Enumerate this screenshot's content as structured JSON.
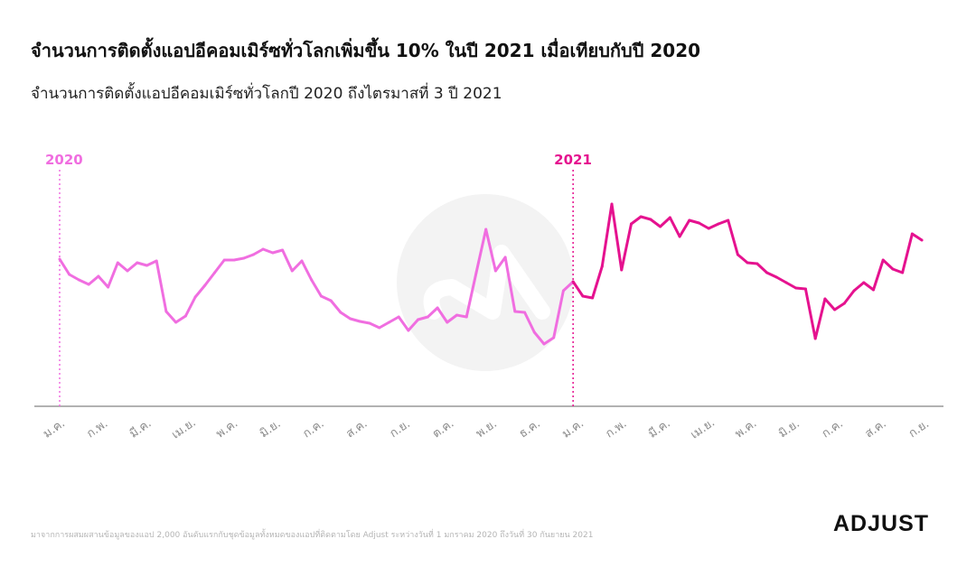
{
  "header": {
    "title": "จำนวนการติดตั้งแอปอีคอมเมิร์ซทั่วโลกเพิ่มขึ้น 10% ในปี 2021 เมื่อเทียบกับปี 2020",
    "subtitle": "จำนวนการติดตั้งแอปอีคอมเมิร์ซทั่วโลกปี 2020 ถึงไตรมาสที่ 3 ปี 2021"
  },
  "footer": {
    "source": "มาจากการผสมผสานข้อมูลของแอป 2,000 อันดับแรกกับชุดข้อมูลทั้งหมดของแอปที่ติดตามโดย Adjust ระหว่างวันที่ 1 มกราคม 2020 ถึงวันที่ 30 กันยายน 2021",
    "logo": "ADJUST"
  },
  "chart_data": {
    "type": "line",
    "title": "จำนวนการติดตั้งแอปอีคอมเมิร์ซทั่วโลกปี 2020 ถึงไตรมาสที่ 3 ปี 2021",
    "xlabel": "",
    "ylabel": "",
    "y_axis_visible": false,
    "ylim": [
      0,
      240
    ],
    "x_unit": "week index",
    "month_labels": [
      "ม.ค.",
      "ก.พ.",
      "มี.ค.",
      "เม.ย.",
      "พ.ค.",
      "มิ.ย.",
      "ก.ค.",
      "ส.ค.",
      "ก.ย.",
      "ต.ค.",
      "พ.ย.",
      "ธ.ค.",
      "ม.ค.",
      "ก.พ.",
      "มี.ค.",
      "เม.ย.",
      "พ.ค.",
      "มิ.ย.",
      "ก.ค.",
      "ส.ค.",
      "ก.ย."
    ],
    "annotations": [
      {
        "label": "2020",
        "x": 0,
        "color": "#f06ee0"
      },
      {
        "label": "2021",
        "x": 53,
        "color": "#e5128f"
      }
    ],
    "series": [
      {
        "name": "2020",
        "color": "#f06ee0",
        "start": 0,
        "values": [
          163,
          146,
          140,
          135,
          144,
          132,
          159,
          150,
          159,
          156,
          161,
          105,
          93,
          100,
          121,
          134,
          148,
          162,
          162,
          164,
          168,
          174,
          170,
          173,
          150,
          161,
          140,
          122,
          117,
          104,
          97,
          94,
          92,
          87,
          93,
          99,
          84,
          96,
          99,
          109,
          93,
          101,
          99,
          148,
          196,
          150,
          165,
          105,
          104,
          82,
          69,
          76,
          128,
          138
        ]
      },
      {
        "name": "2021",
        "color": "#e5128f",
        "start": 53,
        "values": [
          138,
          122,
          120,
          155,
          224,
          151,
          202,
          210,
          207,
          199,
          209,
          188,
          206,
          203,
          197,
          202,
          206,
          168,
          159,
          158,
          148,
          143,
          137,
          131,
          130,
          75,
          119,
          107,
          114,
          128,
          137,
          129,
          162,
          152,
          148,
          191,
          184
        ]
      }
    ]
  }
}
